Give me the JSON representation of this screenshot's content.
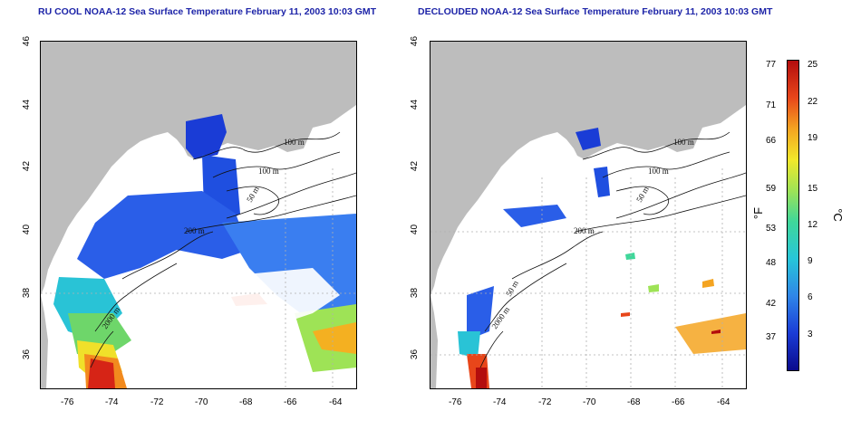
{
  "left_map": {
    "title": "RU COOL NOAA-12 Sea Surface Temperature February 11, 2003 10:03 GMT",
    "contour_labels": [
      "100 m",
      "100 m",
      "50 m",
      "200 m",
      "2000 m"
    ]
  },
  "right_map": {
    "title": "DECLOUDED NOAA-12 Sea Surface Temperature February 11, 2003 10:03 GMT",
    "contour_labels": [
      "100 m",
      "100 m",
      "50 m",
      "200 m",
      "50 m",
      "2000 m"
    ]
  },
  "axes": {
    "x_ticks": [
      "-76",
      "-74",
      "-72",
      "-70",
      "-68",
      "-66",
      "-64"
    ],
    "y_ticks": [
      "36",
      "38",
      "40",
      "42",
      "44",
      "46"
    ],
    "lon_range": [
      -77,
      -63
    ],
    "lat_range": [
      35,
      46
    ]
  },
  "colorbar": {
    "left_unit": "°F",
    "right_unit": "°C",
    "f_ticks": [
      "77",
      "71",
      "66",
      "59",
      "53",
      "48",
      "42",
      "37"
    ],
    "c_ticks": [
      "25",
      "22",
      "19",
      "15",
      "12",
      "9",
      "6",
      "3"
    ]
  },
  "colors": {
    "land": "#bdbdbd",
    "title": "#1d24a8",
    "grid": "#b0b0b0"
  }
}
